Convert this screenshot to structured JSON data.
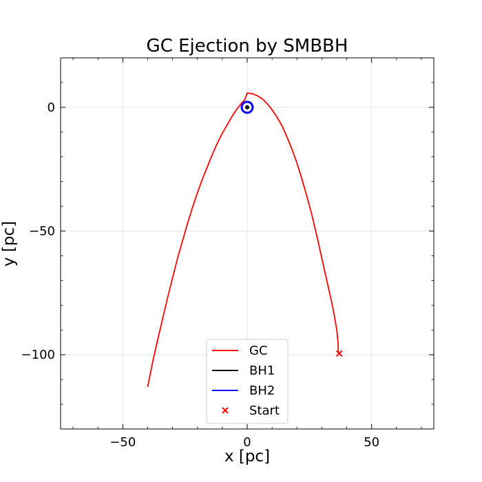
{
  "chart_data": {
    "type": "line",
    "title": "GC Ejection by SMBBH",
    "xlabel": "x [pc]",
    "ylabel": "y [pc]",
    "xlim": [
      -75,
      75
    ],
    "ylim": [
      -130,
      20
    ],
    "xticks": [
      -50,
      0,
      50
    ],
    "yticks": [
      0,
      -50,
      -100
    ],
    "xtick_labels": [
      "−50",
      "0",
      "50"
    ],
    "ytick_labels": [
      "0",
      "−50",
      "−100"
    ],
    "grid": true,
    "legend_position": "lower center",
    "series": [
      {
        "name": "GC",
        "kind": "line",
        "color": "#ff0000",
        "points": [
          [
            -40,
            -113
          ],
          [
            -38,
            -103
          ],
          [
            -36,
            -94
          ],
          [
            -34,
            -85.5
          ],
          [
            -32,
            -77
          ],
          [
            -30,
            -69
          ],
          [
            -28,
            -61
          ],
          [
            -26,
            -54
          ],
          [
            -24,
            -47
          ],
          [
            -22,
            -40.5
          ],
          [
            -20,
            -34.5
          ],
          [
            -18,
            -29
          ],
          [
            -16,
            -24
          ],
          [
            -14,
            -19
          ],
          [
            -12,
            -14.5
          ],
          [
            -10,
            -10.5
          ],
          [
            -8,
            -7
          ],
          [
            -6,
            -3.5
          ],
          [
            -4,
            -0.5
          ],
          [
            -2,
            2
          ],
          [
            -1,
            3
          ],
          [
            0,
            5.8
          ],
          [
            2,
            5.5
          ],
          [
            4,
            4.7
          ],
          [
            6,
            3.5
          ],
          [
            8,
            1.5
          ],
          [
            10,
            -1
          ],
          [
            12,
            -4
          ],
          [
            14,
            -7.5
          ],
          [
            16,
            -12
          ],
          [
            18,
            -17
          ],
          [
            20,
            -22.5
          ],
          [
            22,
            -29
          ],
          [
            24,
            -36
          ],
          [
            26,
            -43.5
          ],
          [
            28,
            -52
          ],
          [
            30,
            -61
          ],
          [
            32,
            -70
          ],
          [
            34,
            -79
          ],
          [
            35,
            -84
          ],
          [
            36,
            -90
          ],
          [
            36.5,
            -95
          ],
          [
            36.7,
            -99.5
          ]
        ]
      },
      {
        "name": "BH1",
        "kind": "orbit",
        "color": "#000000",
        "center": [
          0,
          0
        ],
        "radius": 0.5
      },
      {
        "name": "BH2",
        "kind": "orbit",
        "color": "#0000ff",
        "center": [
          0,
          0
        ],
        "radius": 2.2
      },
      {
        "name": "Start",
        "kind": "marker",
        "marker": "x",
        "color": "#ff0000",
        "points": [
          [
            37,
            -99.5
          ]
        ]
      }
    ]
  }
}
